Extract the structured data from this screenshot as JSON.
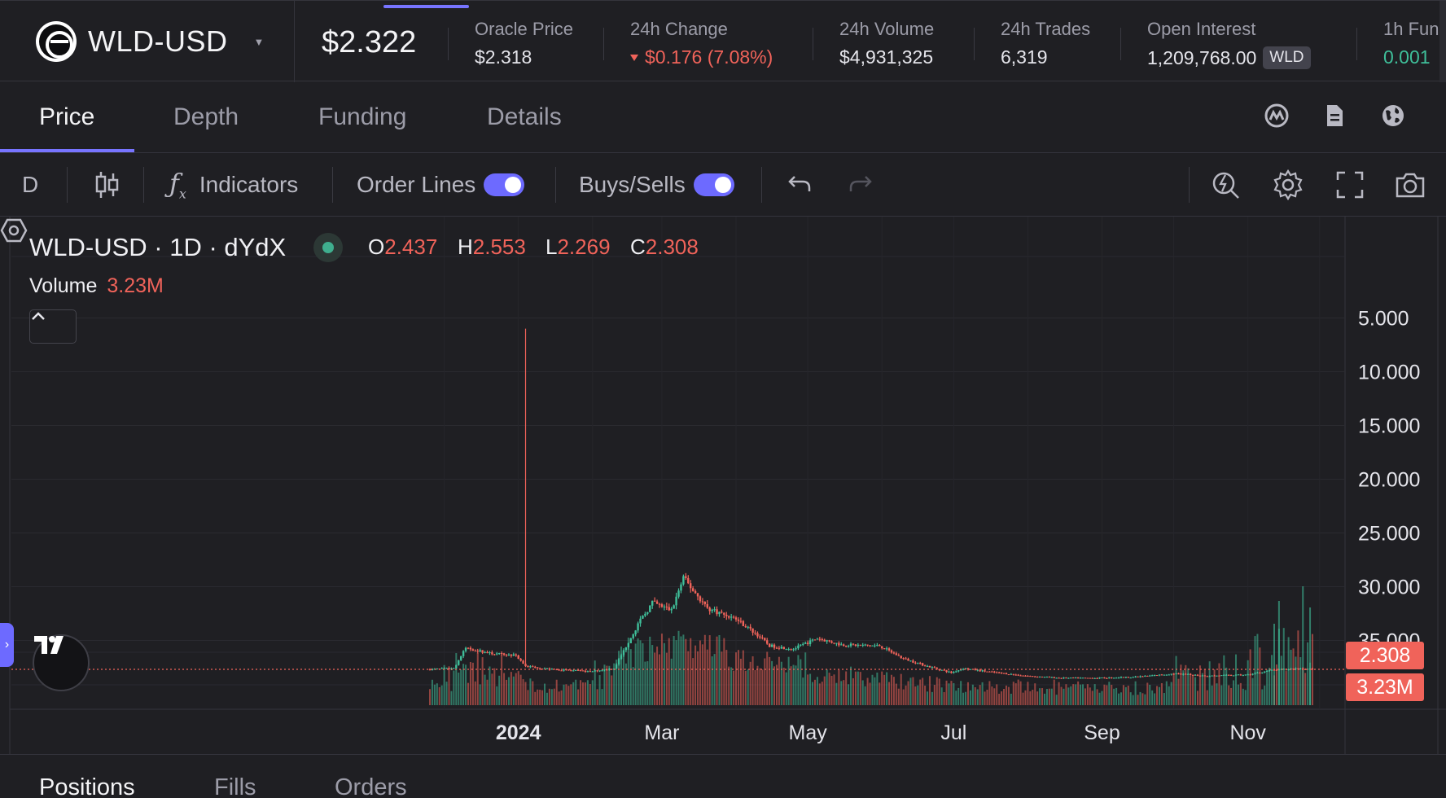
{
  "market": {
    "name": "WLD-USD",
    "last_price": "$2.322",
    "stats": [
      {
        "label": "Oracle Price",
        "value": "$2.318"
      },
      {
        "label": "24h Change",
        "value": "$0.176 (7.08%)",
        "direction": "down"
      },
      {
        "label": "24h Volume",
        "value": "$4,931,325"
      },
      {
        "label": "24h Trades",
        "value": "6,319"
      },
      {
        "label": "Open Interest",
        "value": "1,209,768.00",
        "tag": "WLD"
      },
      {
        "label": "1h Fun",
        "value": "0.001"
      }
    ]
  },
  "chart_tabs": [
    {
      "label": "Price",
      "active": true
    },
    {
      "label": "Depth",
      "active": false
    },
    {
      "label": "Funding",
      "active": false
    },
    {
      "label": "Details",
      "active": false
    }
  ],
  "chart_tab_icons": [
    "coinmarketcap-icon",
    "document-icon",
    "globe-icon"
  ],
  "toolbar": {
    "interval": "D",
    "indicators_label": "Indicators",
    "order_lines_label": "Order Lines",
    "order_lines_on": true,
    "buys_sells_label": "Buys/Sells",
    "buys_sells_on": true,
    "right_icons": [
      "quick-search-icon",
      "settings-icon",
      "fullscreen-icon",
      "camera-icon"
    ]
  },
  "legend": {
    "title": "WLD-USD · 1D · dYdX",
    "ohlc": [
      {
        "key": "O",
        "value": "2.437"
      },
      {
        "key": "H",
        "value": "2.553"
      },
      {
        "key": "L",
        "value": "2.269"
      },
      {
        "key": "C",
        "value": "2.308"
      }
    ],
    "volume_label": "Volume",
    "volume_value": "3.23M"
  },
  "axis": {
    "price_ticks": [
      "35.000",
      "30.000",
      "25.000",
      "20.000",
      "15.000",
      "10.000",
      "5.000"
    ],
    "time_ticks": [
      "2024",
      "Mar",
      "May",
      "Jul",
      "Sep",
      "Nov"
    ],
    "last_price_tag": "2.308",
    "last_volume_tag": "3.23M"
  },
  "colors": {
    "up": "#3fbf9a",
    "down": "#f0635a",
    "accent": "#7774ff",
    "background": "#1f1f23"
  },
  "chart_data": {
    "type": "candlestick",
    "symbol": "WLD-USD",
    "interval": "1D",
    "ylim": [
      0,
      37
    ],
    "y_ticks": [
      5,
      10,
      15,
      20,
      25,
      30,
      35
    ],
    "x_ticks": [
      "2024",
      "Mar",
      "May",
      "Jul",
      "Sep",
      "Nov"
    ],
    "last_close": 2.308,
    "last_volume": "3.23M",
    "series": [
      {
        "name": "Price",
        "points": [
          [
            "2023-11-25",
            2.3
          ],
          [
            "2023-12-05",
            2.4
          ],
          [
            "2023-12-10",
            4.3
          ],
          [
            "2023-12-20",
            3.8
          ],
          [
            "2023-12-31",
            3.6
          ],
          [
            "2024-01-04",
            2.6
          ],
          [
            "2024-01-15",
            2.3
          ],
          [
            "2024-01-31",
            2.1
          ],
          [
            "2024-02-10",
            2.4
          ],
          [
            "2024-02-20",
            6.5
          ],
          [
            "2024-02-26",
            8.5
          ],
          [
            "2024-03-05",
            7.8
          ],
          [
            "2024-03-10",
            10.8
          ],
          [
            "2024-03-20",
            8.0
          ],
          [
            "2024-04-01",
            7.0
          ],
          [
            "2024-04-10",
            5.5
          ],
          [
            "2024-04-15",
            4.5
          ],
          [
            "2024-04-25",
            4.2
          ],
          [
            "2024-05-05",
            5.2
          ],
          [
            "2024-05-15",
            4.6
          ],
          [
            "2024-05-31",
            4.5
          ],
          [
            "2024-06-10",
            3.3
          ],
          [
            "2024-06-20",
            2.6
          ],
          [
            "2024-06-30",
            2.0
          ],
          [
            "2024-07-05",
            2.4
          ],
          [
            "2024-07-15",
            2.1
          ],
          [
            "2024-07-31",
            1.7
          ],
          [
            "2024-08-15",
            1.5
          ],
          [
            "2024-08-31",
            1.5
          ],
          [
            "2024-09-15",
            1.6
          ],
          [
            "2024-10-01",
            1.9
          ],
          [
            "2024-10-15",
            1.7
          ],
          [
            "2024-11-01",
            1.8
          ],
          [
            "2024-11-10",
            2.2
          ],
          [
            "2024-11-22",
            2.4
          ],
          [
            "2024-11-28",
            2.31
          ]
        ]
      }
    ],
    "spike": {
      "date": "2024-01-04",
      "high": 34.0
    }
  },
  "bottom_tabs": [
    {
      "label": "Positions",
      "active": true
    },
    {
      "label": "Fills",
      "active": false
    },
    {
      "label": "Orders",
      "active": false
    }
  ]
}
